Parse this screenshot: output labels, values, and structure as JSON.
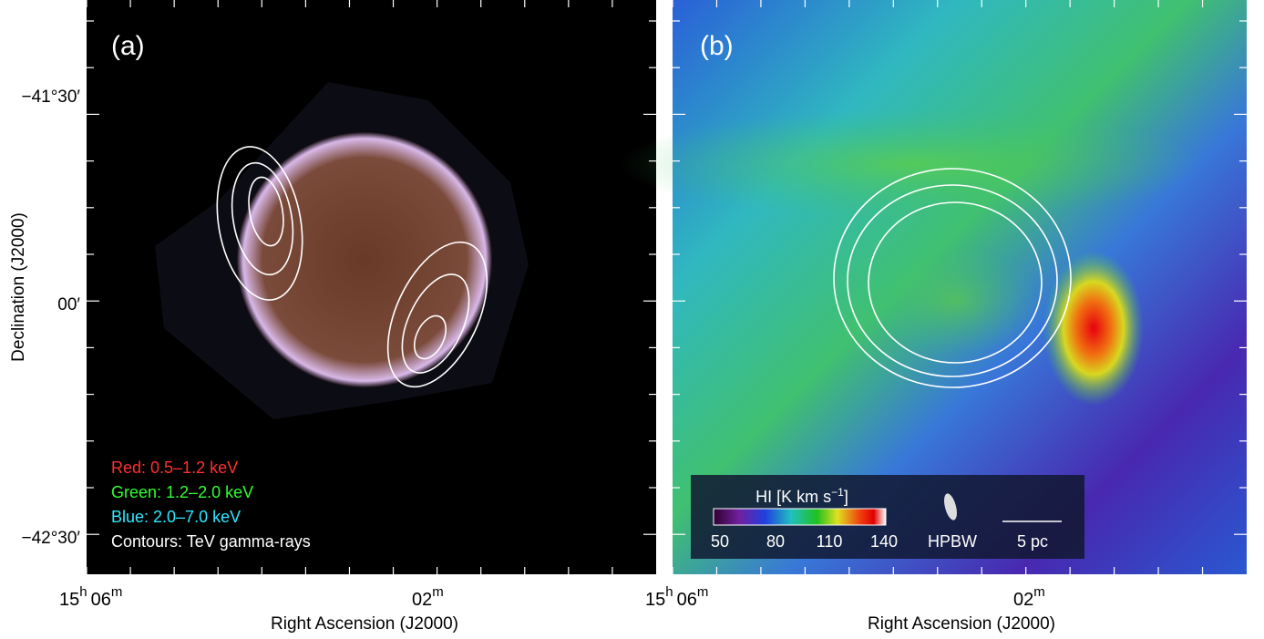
{
  "panels": [
    {
      "label": "(a)",
      "legend": [
        "Red: 0.5–1.2 keV",
        "Green: 1.2–2.0 keV",
        "Blue: 2.0–7.0 keV",
        "Contours: TeV gamma-rays"
      ]
    },
    {
      "label": "(b)",
      "colorbar": {
        "title": "HI [K km s",
        "title_sup": "−1",
        "title_end": "]",
        "ticks": [
          "50",
          "80",
          "110",
          "140"
        ]
      },
      "beam": "HPBW",
      "scale": "5 pc"
    }
  ],
  "x_axis": {
    "label": "Right Ascension (J2000)",
    "ticks": [
      {
        "h": "15",
        "hu": "h",
        "m": "06",
        "mu": "m"
      },
      {
        "m": "02",
        "mu": "m"
      }
    ]
  },
  "y_axis": {
    "label": "Declination (J2000)",
    "ticks": [
      "−41°30′",
      "00′",
      "−42°30′"
    ]
  }
}
